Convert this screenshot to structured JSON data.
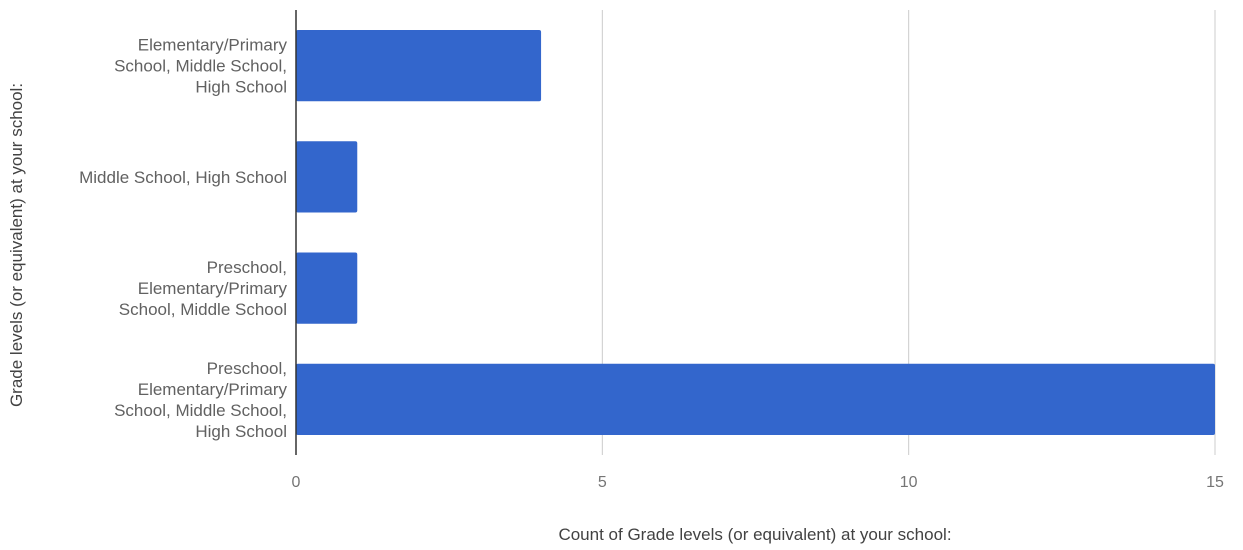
{
  "chart_data": {
    "type": "bar",
    "orientation": "horizontal",
    "categories": [
      "Elementary/Primary School, Middle School, High School",
      "Middle School, High School",
      "Preschool, Elementary/Primary School, Middle School",
      "Preschool, Elementary/Primary School, Middle School, High School"
    ],
    "category_lines": [
      [
        "Elementary/Primary",
        "School, Middle School,",
        "High School"
      ],
      [
        "Middle School, High School"
      ],
      [
        "Preschool,",
        "Elementary/Primary",
        "School, Middle School"
      ],
      [
        "Preschool,",
        "Elementary/Primary",
        "School, Middle School,",
        "High School"
      ]
    ],
    "values": [
      4,
      1,
      1,
      15
    ],
    "xlabel": "Count of Grade levels (or equivalent) at your school:",
    "ylabel": "Grade levels (or equivalent) at your school:",
    "xlim": [
      0,
      15
    ],
    "xticks": [
      0,
      5,
      10,
      15
    ],
    "grid": true,
    "bar_color": "#3366cc",
    "grid_color": "#cccccc",
    "axis_color": "#333333"
  }
}
